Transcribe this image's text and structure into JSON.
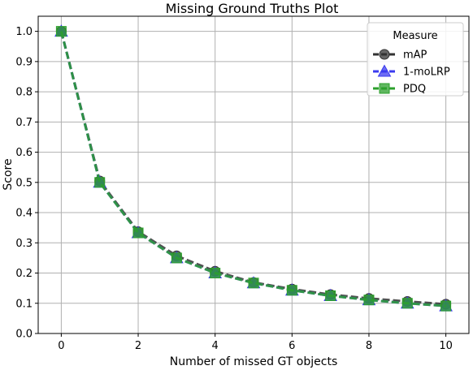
{
  "chart_data": {
    "type": "line",
    "title": "Missing Ground Truths Plot",
    "xlabel": "Number of missed GT objects",
    "ylabel": "Score",
    "x": [
      0,
      1,
      2,
      3,
      4,
      5,
      6,
      7,
      8,
      9,
      10
    ],
    "xticks": [
      "0",
      "2",
      "4",
      "6",
      "8",
      "10"
    ],
    "xtick_values": [
      0,
      2,
      4,
      6,
      8,
      10
    ],
    "yticks": [
      "0.0",
      "0.1",
      "0.2",
      "0.3",
      "0.4",
      "0.5",
      "0.6",
      "0.7",
      "0.8",
      "0.9",
      "1.0"
    ],
    "ytick_values": [
      0,
      0.1,
      0.2,
      0.3,
      0.4,
      0.5,
      0.6,
      0.7,
      0.8,
      0.9,
      1.0
    ],
    "xlim": [
      -0.6,
      10.6
    ],
    "ylim": [
      0,
      1.05
    ],
    "grid": true,
    "legend": {
      "title": "Measure",
      "placement": "top-right"
    },
    "series": [
      {
        "name": "mAP",
        "marker": "circle",
        "color": "#333333",
        "values": [
          1.0,
          0.505,
          0.337,
          0.257,
          0.206,
          0.169,
          0.147,
          0.129,
          0.116,
          0.106,
          0.097
        ]
      },
      {
        "name": "1-moLRP",
        "marker": "triangle",
        "color": "#3b3bef",
        "values": [
          1.0,
          0.5,
          0.333,
          0.25,
          0.2,
          0.167,
          0.143,
          0.125,
          0.111,
          0.1,
          0.091
        ]
      },
      {
        "name": "PDQ",
        "marker": "square",
        "color": "#2ca02c",
        "values": [
          1.0,
          0.5,
          0.333,
          0.25,
          0.2,
          0.167,
          0.143,
          0.125,
          0.111,
          0.1,
          0.091
        ]
      }
    ]
  }
}
